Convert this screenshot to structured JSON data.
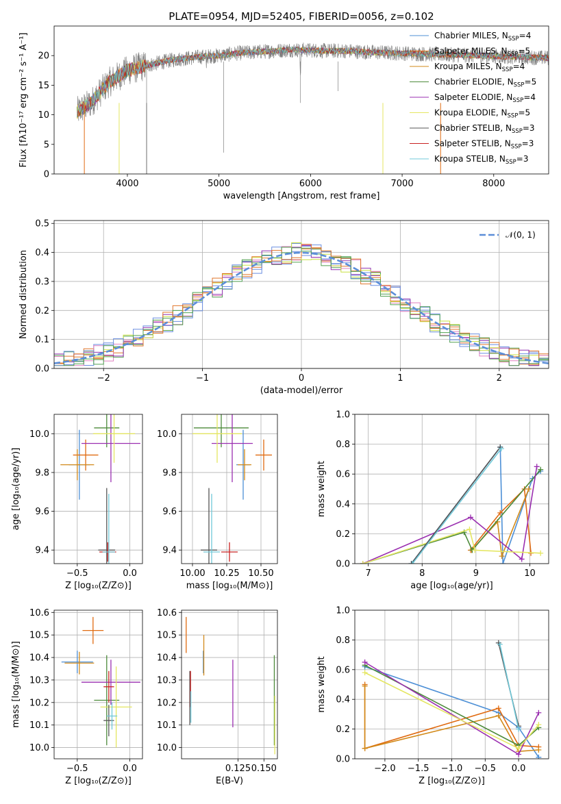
{
  "figure_title": "PLATE=0954, MJD=52405, FIBERID=0056, z=0.102",
  "colors": {
    "Chabrier MILES": "#4c8fd6",
    "Salpeter MILES": "#e06a10",
    "Kroupa MILES": "#d28a1a",
    "Chabrier ELODIE": "#4c8a3a",
    "Salpeter ELODIE": "#9a2eb0",
    "Kroupa ELODIE": "#e4e660",
    "Chabrier STELIB": "#555555",
    "Salpeter STELIB": "#c82020",
    "Kroupa STELIB": "#70c8d8",
    "hist_a": "#6a8ee0",
    "hist_b": "#e0762a",
    "hist_c": "#e080c0",
    "hist_d": "#50a050",
    "hist_e": "#9030b0",
    "hist_f": "#c8e040",
    "normal": "#5b8ed8"
  },
  "chart_data": [
    {
      "id": "spectrum",
      "type": "line",
      "title": "PLATE=0954, MJD=52405, FIBERID=0056, z=0.102",
      "xlabel": "wavelength [Angstrom, rest frame]",
      "ylabel": "Flux [fλ10⁻¹⁷ erg cm⁻² s⁻¹ A⁻¹]",
      "xlim": [
        3200,
        8600
      ],
      "ylim": [
        0,
        25
      ],
      "xticks": [
        4000,
        5000,
        6000,
        7000,
        8000
      ],
      "yticks": [
        0,
        5,
        10,
        15,
        20
      ],
      "legend_position": "right",
      "grid": false,
      "series_names": [
        "Chabrier MILES, NSSP=4",
        "Salpeter MILES, NSSP=5",
        "Kroupa MILES, NSSP=4",
        "Chabrier ELODIE, NSSP=5",
        "Salpeter ELODIE, NSSP=4",
        "Kroupa ELODIE, NSSP=5",
        "Chabrier STELIB, NSSP=3",
        "Salpeter STELIB, NSSP=3",
        "Kroupa STELIB, NSSP=3"
      ],
      "legend_labels": [
        {
          "main": "Chabrier MILES, N",
          "sub": "SSP",
          "tail": "=4"
        },
        {
          "main": "Salpeter MILES, N",
          "sub": "SSP",
          "tail": "=5"
        },
        {
          "main": "Kroupa MILES, N",
          "sub": "SSP",
          "tail": "=4"
        },
        {
          "main": "Chabrier ELODIE, N",
          "sub": "SSP",
          "tail": "=5"
        },
        {
          "main": "Salpeter ELODIE, N",
          "sub": "SSP",
          "tail": "=4"
        },
        {
          "main": "Kroupa ELODIE, N",
          "sub": "SSP",
          "tail": "=5"
        },
        {
          "main": "Chabrier STELIB, N",
          "sub": "SSP",
          "tail": "=3"
        },
        {
          "main": "Salpeter STELIB, N",
          "sub": "SSP",
          "tail": "=3"
        },
        {
          "main": "Kroupa STELIB, N",
          "sub": "SSP",
          "tail": "=3"
        }
      ],
      "continuum_x": [
        3450,
        3600,
        3800,
        4000,
        4200,
        4500,
        4800,
        5000,
        5200,
        5400,
        5600,
        5800,
        6000,
        6200,
        6400,
        6600,
        6800,
        7000,
        7200,
        7400,
        7600,
        7800,
        8000,
        8200,
        8400,
        8600
      ],
      "continuum_y": [
        10.5,
        12.0,
        15.5,
        17.5,
        18.3,
        19.3,
        19.8,
        20.0,
        20.4,
        20.6,
        20.8,
        21.0,
        20.9,
        20.8,
        20.8,
        20.6,
        20.5,
        20.4,
        20.3,
        20.2,
        20.1,
        20.0,
        19.9,
        19.8,
        19.7,
        19.6
      ],
      "model_drops_x": [
        3530,
        3910,
        4210,
        6790,
        7420
      ]
    },
    {
      "id": "residuals",
      "type": "line",
      "xlabel": "(data-model)/error",
      "ylabel": "Normed distribution",
      "xlim": [
        -2.5,
        2.5
      ],
      "ylim": [
        0,
        0.51
      ],
      "xticks": [
        -2,
        -1,
        0,
        1,
        2
      ],
      "yticks": [
        0.0,
        0.1,
        0.2,
        0.3,
        0.4,
        0.5
      ],
      "grid": true,
      "legend_position": "top-right",
      "normal_label": "𝒩(0, 1)",
      "bin_width": 0.1
    },
    {
      "id": "age-vs-Z",
      "type": "scatter",
      "xlabel": "Z [log₁₀(Z/Z⊙)]",
      "ylabel": "age  [log₁₀(age/yr)]",
      "xlim": [
        -0.72,
        0.12
      ],
      "ylim": [
        9.33,
        10.1
      ],
      "xticks": [
        -0.5,
        0.0
      ],
      "yticks": [
        9.4,
        9.6,
        9.8,
        10.0
      ],
      "grid": true,
      "points": [
        {
          "model": "Chabrier MILES",
          "x": -0.48,
          "y": 9.84,
          "xerr": 0.1,
          "yerr": 0.18
        },
        {
          "model": "Salpeter MILES",
          "x": -0.42,
          "y": 9.89,
          "xerr": 0.12,
          "yerr": 0.08
        },
        {
          "model": "Kroupa MILES",
          "x": -0.5,
          "y": 9.84,
          "xerr": 0.16,
          "yerr": 0.08
        },
        {
          "model": "Chabrier ELODIE",
          "x": -0.22,
          "y": 10.03,
          "xerr": 0.12,
          "yerr": 0.1
        },
        {
          "model": "Salpeter ELODIE",
          "x": -0.18,
          "y": 9.95,
          "xerr": 0.28,
          "yerr": 0.2
        },
        {
          "model": "Kroupa ELODIE",
          "x": -0.15,
          "y": 10.0,
          "xerr": 0.2,
          "yerr": 0.15
        },
        {
          "model": "Chabrier STELIB",
          "x": -0.22,
          "y": 9.4,
          "xerr": 0.08,
          "yerr": 0.32
        },
        {
          "model": "Salpeter STELIB",
          "x": -0.21,
          "y": 9.39,
          "xerr": 0.08,
          "yerr": 0.05
        },
        {
          "model": "Kroupa STELIB",
          "x": -0.2,
          "y": 9.39,
          "xerr": 0.06,
          "yerr": 0.3
        }
      ]
    },
    {
      "id": "age-vs-mass",
      "type": "scatter",
      "xlabel": "mass [log₁₀(M/M⊙)]",
      "ylabel": "",
      "xlim": [
        9.92,
        10.62
      ],
      "ylim": [
        9.33,
        10.1
      ],
      "xticks": [
        10.0,
        10.25,
        10.5
      ],
      "xticklabels": [
        "10.00",
        "10.25",
        "10.50"
      ],
      "yticks": [
        9.4,
        9.6,
        9.8,
        10.0
      ],
      "grid": true,
      "points": [
        {
          "model": "Chabrier MILES",
          "x": 10.37,
          "y": 9.84,
          "xerr": 0.05,
          "yerr": 0.18
        },
        {
          "model": "Salpeter MILES",
          "x": 10.52,
          "y": 9.89,
          "xerr": 0.06,
          "yerr": 0.08
        },
        {
          "model": "Kroupa MILES",
          "x": 10.38,
          "y": 9.84,
          "xerr": 0.05,
          "yerr": 0.08
        },
        {
          "model": "Chabrier ELODIE",
          "x": 10.21,
          "y": 10.03,
          "xerr": 0.2,
          "yerr": 0.1
        },
        {
          "model": "Salpeter ELODIE",
          "x": 10.29,
          "y": 9.95,
          "xerr": 0.15,
          "yerr": 0.2
        },
        {
          "model": "Kroupa ELODIE",
          "x": 10.18,
          "y": 10.0,
          "xerr": 0.18,
          "yerr": 0.15
        },
        {
          "model": "Chabrier STELIB",
          "x": 10.12,
          "y": 9.4,
          "xerr": 0.06,
          "yerr": 0.32
        },
        {
          "model": "Salpeter STELIB",
          "x": 10.27,
          "y": 9.39,
          "xerr": 0.06,
          "yerr": 0.05
        },
        {
          "model": "Kroupa STELIB",
          "x": 10.14,
          "y": 9.39,
          "xerr": 0.06,
          "yerr": 0.3
        }
      ]
    },
    {
      "id": "weight-vs-age",
      "type": "line",
      "xlabel": "age  [log₁₀(age/yr)]",
      "ylabel": "mass weight",
      "xlim": [
        6.75,
        10.35
      ],
      "ylim": [
        0,
        1.0
      ],
      "xticks": [
        7,
        8,
        9,
        10
      ],
      "yticks": [
        0.0,
        0.2,
        0.4,
        0.6,
        0.8,
        1.0
      ],
      "grid": true,
      "series": [
        {
          "model": "Chabrier MILES",
          "x": [
            7.8,
            9.45,
            9.5,
            10.05,
            10.2
          ],
          "y": [
            0.0,
            0.78,
            0.0,
            0.57,
            0.62
          ]
        },
        {
          "model": "Salpeter MILES",
          "x": [
            8.9,
            9.45,
            9.9,
            10.02
          ],
          "y": [
            0.09,
            0.34,
            0.5,
            0.07
          ]
        },
        {
          "model": "Kroupa MILES",
          "x": [
            8.92,
            9.4,
            9.48,
            9.98
          ],
          "y": [
            0.09,
            0.28,
            0.05,
            0.5
          ]
        },
        {
          "model": "Chabrier ELODIE",
          "x": [
            6.9,
            8.78,
            8.93,
            10.2
          ],
          "y": [
            0.0,
            0.21,
            0.09,
            0.63
          ]
        },
        {
          "model": "Salpeter ELODIE",
          "x": [
            6.9,
            8.9,
            9.85,
            10.13
          ],
          "y": [
            0.0,
            0.31,
            0.03,
            0.65
          ]
        },
        {
          "model": "Kroupa ELODIE",
          "x": [
            6.9,
            8.88,
            8.98,
            10.2
          ],
          "y": [
            0.0,
            0.23,
            0.09,
            0.07
          ]
        },
        {
          "model": "Chabrier STELIB",
          "x": [
            7.8,
            9.45
          ],
          "y": [
            0.0,
            0.78
          ]
        },
        {
          "model": "Kroupa STELIB",
          "x": [
            7.82,
            9.47
          ],
          "y": [
            0.0,
            0.77
          ]
        }
      ]
    },
    {
      "id": "mass-vs-Z",
      "type": "scatter",
      "xlabel": "Z [log₁₀(Z/Z⊙)]",
      "ylabel": "mass [log₁₀(M/M⊙)]",
      "xlim": [
        -0.72,
        0.12
      ],
      "ylim": [
        9.95,
        10.61
      ],
      "xticks": [
        -0.5,
        0.0
      ],
      "yticks": [
        10.0,
        10.1,
        10.2,
        10.3,
        10.4,
        10.5,
        10.6
      ],
      "grid": true,
      "points": [
        {
          "model": "Chabrier MILES",
          "x": -0.5,
          "y": 10.38,
          "xerr": 0.15,
          "yerr": 0.05
        },
        {
          "model": "Salpeter MILES",
          "x": -0.35,
          "y": 10.52,
          "xerr": 0.1,
          "yerr": 0.06
        },
        {
          "model": "Kroupa MILES",
          "x": -0.48,
          "y": 10.375,
          "xerr": 0.14,
          "yerr": 0.05
        },
        {
          "model": "Chabrier ELODIE",
          "x": -0.22,
          "y": 10.21,
          "xerr": 0.12,
          "yerr": 0.2
        },
        {
          "model": "Salpeter ELODIE",
          "x": -0.18,
          "y": 10.29,
          "xerr": 0.28,
          "yerr": 0.1
        },
        {
          "model": "Kroupa ELODIE",
          "x": -0.13,
          "y": 10.18,
          "xerr": 0.15,
          "yerr": 0.18
        },
        {
          "model": "Chabrier STELIB",
          "x": -0.2,
          "y": 10.12,
          "xerr": 0.05,
          "yerr": 0.07
        },
        {
          "model": "Salpeter STELIB",
          "x": -0.2,
          "y": 10.27,
          "xerr": 0.05,
          "yerr": 0.07
        },
        {
          "model": "Kroupa STELIB",
          "x": -0.17,
          "y": 10.14,
          "xerr": 0.05,
          "yerr": 0.06
        }
      ]
    },
    {
      "id": "mass-vs-ebv",
      "type": "scatter",
      "xlabel": "E(B-V)",
      "ylabel": "",
      "xlim": [
        0.0705,
        0.163
      ],
      "ylim": [
        9.95,
        10.61
      ],
      "xticks": [
        0.125,
        0.15
      ],
      "xticklabels": [
        "0.125",
        "0.150"
      ],
      "yticks": [
        10.0,
        10.1,
        10.2,
        10.3,
        10.4,
        10.5,
        10.6
      ],
      "grid": true,
      "points": [
        {
          "model": "Chabrier MILES",
          "x": 0.0915,
          "y": 10.38,
          "xerr": 0,
          "yerr": 0.05
        },
        {
          "model": "Salpeter MILES",
          "x": 0.075,
          "y": 10.5,
          "xerr": 0,
          "yerr": 0.08
        },
        {
          "model": "Kroupa MILES",
          "x": 0.092,
          "y": 10.41,
          "xerr": 0,
          "yerr": 0.09
        },
        {
          "model": "Chabrier ELODIE",
          "x": 0.16,
          "y": 10.21,
          "xerr": 0,
          "yerr": 0.2
        },
        {
          "model": "Salpeter ELODIE",
          "x": 0.12,
          "y": 10.24,
          "xerr": 0,
          "yerr": 0.15
        },
        {
          "model": "Kroupa ELODIE",
          "x": 0.1605,
          "y": 10.1,
          "xerr": 0,
          "yerr": 0.13
        },
        {
          "model": "Chabrier STELIB",
          "x": 0.0785,
          "y": 10.22,
          "xerr": 0,
          "yerr": 0.12
        },
        {
          "model": "Salpeter STELIB",
          "x": 0.0792,
          "y": 10.26,
          "xerr": 0,
          "yerr": 0.08
        },
        {
          "model": "Kroupa STELIB",
          "x": 0.0795,
          "y": 10.18,
          "xerr": 0,
          "yerr": 0.07
        }
      ]
    },
    {
      "id": "weight-vs-Z",
      "type": "line",
      "xlabel": "Z [log₁₀(Z/Z⊙)]",
      "ylabel": "mass weight",
      "xlim": [
        -2.45,
        0.45
      ],
      "ylim": [
        0,
        1.0
      ],
      "xticks": [
        -2.0,
        -1.5,
        -1.0,
        -0.5,
        0.0
      ],
      "yticks": [
        0.0,
        0.2,
        0.4,
        0.6,
        0.8,
        1.0
      ],
      "grid": true,
      "series": [
        {
          "model": "Chabrier MILES",
          "x": [
            -2.3,
            -0.3,
            0.0,
            0.3
          ],
          "y": [
            0.62,
            0.31,
            0.21,
            0.01
          ]
        },
        {
          "model": "Salpeter MILES",
          "x": [
            -2.3,
            -2.3,
            -0.3,
            0.0,
            0.3
          ],
          "y": [
            0.5,
            0.07,
            0.34,
            0.09,
            0.08
          ]
        },
        {
          "model": "Kroupa MILES",
          "x": [
            -2.3,
            -2.3,
            -0.3,
            0.0,
            0.3
          ],
          "y": [
            0.49,
            0.07,
            0.29,
            0.05,
            0.06
          ]
        },
        {
          "model": "Chabrier ELODIE",
          "x": [
            -2.3,
            0.0,
            0.3
          ],
          "y": [
            0.63,
            0.09,
            0.21
          ]
        },
        {
          "model": "Salpeter ELODIE",
          "x": [
            -2.3,
            0.0,
            0.3
          ],
          "y": [
            0.65,
            0.03,
            0.31
          ]
        },
        {
          "model": "Kroupa ELODIE",
          "x": [
            -2.3,
            0.0,
            0.3
          ],
          "y": [
            0.58,
            0.07,
            0.23
          ]
        },
        {
          "model": "Chabrier STELIB",
          "x": [
            -0.3,
            0.0
          ],
          "y": [
            0.78,
            0.22
          ]
        },
        {
          "model": "Kroupa STELIB",
          "x": [
            -0.28,
            0.0
          ],
          "y": [
            0.77,
            0.2
          ]
        }
      ]
    }
  ]
}
